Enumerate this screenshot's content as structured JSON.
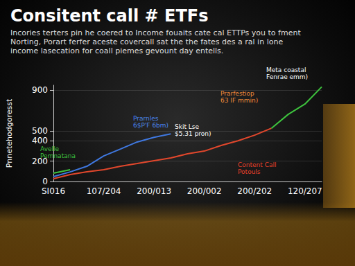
{
  "chart_data": {
    "type": "line",
    "title": "Consitent call # ETFs",
    "subtitle": "Incories terters pin he coered to Income fouaits cate cal ETTPs you to fment\nNorting, Porart ferfer aceste covercall sat the the fates des a ral in lone\nincome lasecation for coall piemes gevount day entells.",
    "y_label": "Pnnetehodgoresst",
    "categories": [
      "SI016",
      null,
      null,
      "107/204",
      null,
      null,
      "200/013",
      null,
      null,
      "200/002",
      null,
      null,
      "200/202",
      null,
      null,
      "120/207",
      null
    ],
    "ylim": [
      0,
      950
    ],
    "yticks": [
      0,
      200,
      400,
      500,
      900
    ],
    "grid": true,
    "series": [
      {
        "color": "#3f78e0",
        "values": [
          48,
          95,
          150,
          252,
          320,
          390,
          436,
          470,
          null,
          null,
          null,
          null,
          null,
          null,
          null,
          null,
          null
        ]
      },
      {
        "color": "#e2472c",
        "values": [
          27,
          68,
          95,
          116,
          150,
          177,
          205,
          232,
          273,
          300,
          355,
          402,
          457,
          525,
          null,
          null,
          null
        ]
      },
      {
        "color": "#3ec43e",
        "values": [
          82,
          116,
          null,
          null,
          null,
          null,
          null,
          null,
          null,
          null,
          null,
          null,
          null,
          525,
          662,
          764,
          934
        ]
      }
    ],
    "annotations": [
      "Prarnles\n6$P'F 6bm)",
      "Skit Lse\n$5.31 pron)",
      "Prarfestiop\n63 IF mmin)",
      "Meta coastal\nFenrae emm)",
      "Avelle\nPemnatana",
      "Content Call\nPotouls"
    ]
  }
}
